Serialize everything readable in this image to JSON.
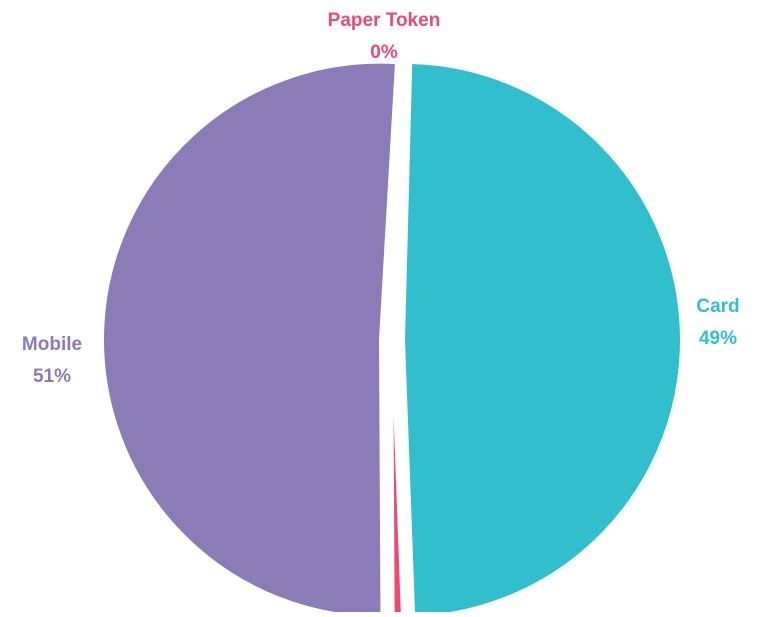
{
  "chart_data": {
    "type": "pie",
    "title": "",
    "categories": [
      "Card",
      "Paper Token",
      "Mobile"
    ],
    "values": [
      49,
      0,
      51
    ],
    "labels": [
      "49%",
      "0%",
      "51%"
    ],
    "colors": [
      "#31BFCE",
      "#EC4A72",
      "#8B7CB8"
    ],
    "legend": "none",
    "exploded": true
  }
}
